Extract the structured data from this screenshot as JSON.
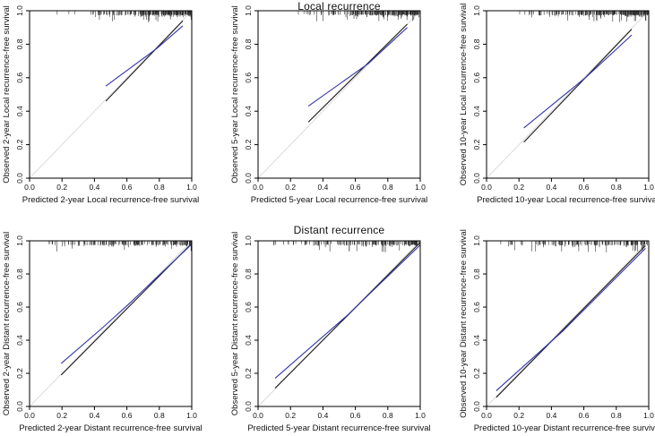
{
  "figure": {
    "row_titles": [
      "Local recurrence",
      "Distant recurrence"
    ]
  },
  "colors": {
    "calibration_line": "#3434ab",
    "bias_corrected_line": "#1c1c1c",
    "ideal_line": "#d9d9d9",
    "rug": "#2e2e2e",
    "axis": "#000000",
    "background": "#ffffff"
  },
  "chart_data": [
    {
      "type": "line",
      "row": 0,
      "col": 0,
      "xlabel": "Predicted 2-year Local recurrence-free survival",
      "ylabel": "Observed 2-year Local recurrence-free survival",
      "xlim": [
        0.0,
        1.0
      ],
      "ylim": [
        0.0,
        1.0
      ],
      "xticks": [
        0.0,
        0.2,
        0.4,
        0.6,
        0.8,
        1.0
      ],
      "yticks": [
        0.0,
        0.2,
        0.4,
        0.6,
        0.8,
        1.0
      ],
      "grid": false,
      "series": [
        {
          "name": "ideal",
          "color_key": "ideal_line",
          "points": [
            [
              0.0,
              0.0
            ],
            [
              1.0,
              1.0
            ]
          ]
        },
        {
          "name": "bias-corrected",
          "color_key": "bias_corrected_line",
          "points": [
            [
              0.47,
              0.46
            ],
            [
              0.945,
              0.94
            ]
          ]
        },
        {
          "name": "calibration",
          "color_key": "calibration_line",
          "points": [
            [
              0.47,
              0.55
            ],
            [
              0.785,
              0.775
            ],
            [
              0.945,
              0.91
            ]
          ]
        }
      ],
      "rug": {
        "count": 230,
        "min": 0.04,
        "max": 1.0,
        "skew": 3.2,
        "seed": 11
      }
    },
    {
      "type": "line",
      "row": 0,
      "col": 1,
      "xlabel": "Predicted 5-year Local recurrence-free survival",
      "ylabel": "Observed 5-year Local recurrence-free survival",
      "xlim": [
        0.0,
        1.0
      ],
      "ylim": [
        0.0,
        1.0
      ],
      "xticks": [
        0.0,
        0.2,
        0.4,
        0.6,
        0.8,
        1.0
      ],
      "yticks": [
        0.0,
        0.2,
        0.4,
        0.6,
        0.8,
        1.0
      ],
      "grid": false,
      "series": [
        {
          "name": "ideal",
          "color_key": "ideal_line",
          "points": [
            [
              0.0,
              0.0
            ],
            [
              1.0,
              1.0
            ]
          ]
        },
        {
          "name": "bias-corrected",
          "color_key": "bias_corrected_line",
          "points": [
            [
              0.31,
              0.335
            ],
            [
              0.92,
              0.92
            ]
          ]
        },
        {
          "name": "calibration",
          "color_key": "calibration_line",
          "points": [
            [
              0.31,
              0.43
            ],
            [
              0.68,
              0.685
            ],
            [
              0.92,
              0.9
            ]
          ]
        }
      ],
      "rug": {
        "count": 225,
        "min": 0.04,
        "max": 1.0,
        "skew": 3.0,
        "seed": 22
      }
    },
    {
      "type": "line",
      "row": 0,
      "col": 2,
      "xlabel": "Predicted 10-year Local recurrence-free survival",
      "ylabel": "Observed 10-year Local recurrence-free survival",
      "xlim": [
        0.0,
        1.0
      ],
      "ylim": [
        0.0,
        1.0
      ],
      "xticks": [
        0.0,
        0.2,
        0.4,
        0.6,
        0.8,
        1.0
      ],
      "yticks": [
        0.0,
        0.2,
        0.4,
        0.6,
        0.8,
        1.0
      ],
      "grid": false,
      "series": [
        {
          "name": "ideal",
          "color_key": "ideal_line",
          "points": [
            [
              0.0,
              0.0
            ],
            [
              1.0,
              1.0
            ]
          ]
        },
        {
          "name": "bias-corrected",
          "color_key": "bias_corrected_line",
          "points": [
            [
              0.23,
              0.215
            ],
            [
              0.895,
              0.89
            ]
          ]
        },
        {
          "name": "calibration",
          "color_key": "calibration_line",
          "points": [
            [
              0.23,
              0.3
            ],
            [
              0.61,
              0.6
            ],
            [
              0.895,
              0.855
            ]
          ]
        }
      ],
      "rug": {
        "count": 240,
        "min": 0.04,
        "max": 1.0,
        "skew": 2.8,
        "seed": 33
      }
    },
    {
      "type": "line",
      "row": 1,
      "col": 0,
      "xlabel": "Predicted 2-year Distant recurrence-free survival",
      "ylabel": "Observed 2-year Distant recurrence-free survival",
      "xlim": [
        0.0,
        1.0
      ],
      "ylim": [
        0.0,
        1.0
      ],
      "xticks": [
        0.0,
        0.2,
        0.4,
        0.6,
        0.8,
        1.0
      ],
      "yticks": [
        0.0,
        0.2,
        0.4,
        0.6,
        0.8,
        1.0
      ],
      "grid": false,
      "series": [
        {
          "name": "ideal",
          "color_key": "ideal_line",
          "points": [
            [
              0.0,
              0.0
            ],
            [
              1.0,
              1.0
            ]
          ]
        },
        {
          "name": "bias-corrected",
          "color_key": "bias_corrected_line",
          "points": [
            [
              0.195,
              0.19
            ],
            [
              1.0,
              0.985
            ]
          ]
        },
        {
          "name": "calibration",
          "color_key": "calibration_line",
          "points": [
            [
              0.195,
              0.26
            ],
            [
              0.45,
              0.475
            ],
            [
              0.63,
              0.635
            ],
            [
              1.0,
              0.98
            ]
          ]
        }
      ],
      "rug": {
        "count": 170,
        "min": 0.05,
        "max": 1.0,
        "skew": 1.9,
        "seed": 44
      }
    },
    {
      "type": "line",
      "row": 1,
      "col": 1,
      "xlabel": "Predicted 5-year Distant recurrence-free survival",
      "ylabel": "Observed 5-year Distant recurrence-free survival",
      "xlim": [
        0.0,
        1.0
      ],
      "ylim": [
        0.0,
        1.0
      ],
      "xticks": [
        0.0,
        0.2,
        0.4,
        0.6,
        0.8,
        1.0
      ],
      "yticks": [
        0.0,
        0.2,
        0.4,
        0.6,
        0.8,
        1.0
      ],
      "grid": false,
      "series": [
        {
          "name": "ideal",
          "color_key": "ideal_line",
          "points": [
            [
              0.0,
              0.0
            ],
            [
              1.0,
              1.0
            ]
          ]
        },
        {
          "name": "bias-corrected",
          "color_key": "bias_corrected_line",
          "points": [
            [
              0.105,
              0.11
            ],
            [
              1.0,
              0.99
            ]
          ]
        },
        {
          "name": "calibration",
          "color_key": "calibration_line",
          "points": [
            [
              0.105,
              0.17
            ],
            [
              0.55,
              0.55
            ],
            [
              1.0,
              0.975
            ]
          ]
        }
      ],
      "rug": {
        "count": 165,
        "min": 0.05,
        "max": 1.0,
        "skew": 1.8,
        "seed": 55
      }
    },
    {
      "type": "line",
      "row": 1,
      "col": 2,
      "xlabel": "Predicted 10-year Distant recurrence-free survival",
      "ylabel": "Observed 10-year Distant recurrence-free survival",
      "xlim": [
        0.0,
        1.0
      ],
      "ylim": [
        0.0,
        1.0
      ],
      "xticks": [
        0.0,
        0.2,
        0.4,
        0.6,
        0.8,
        1.0
      ],
      "yticks": [
        0.0,
        0.2,
        0.4,
        0.6,
        0.8,
        1.0
      ],
      "grid": false,
      "series": [
        {
          "name": "ideal",
          "color_key": "ideal_line",
          "points": [
            [
              0.0,
              0.0
            ],
            [
              1.0,
              1.0
            ]
          ]
        },
        {
          "name": "bias-corrected",
          "color_key": "bias_corrected_line",
          "points": [
            [
              0.06,
              0.055
            ],
            [
              0.98,
              0.97
            ]
          ]
        },
        {
          "name": "calibration",
          "color_key": "calibration_line",
          "points": [
            [
              0.06,
              0.095
            ],
            [
              0.47,
              0.455
            ],
            [
              0.98,
              0.955
            ]
          ]
        }
      ],
      "rug": {
        "count": 160,
        "min": 0.05,
        "max": 1.0,
        "skew": 1.8,
        "seed": 66
      }
    }
  ]
}
